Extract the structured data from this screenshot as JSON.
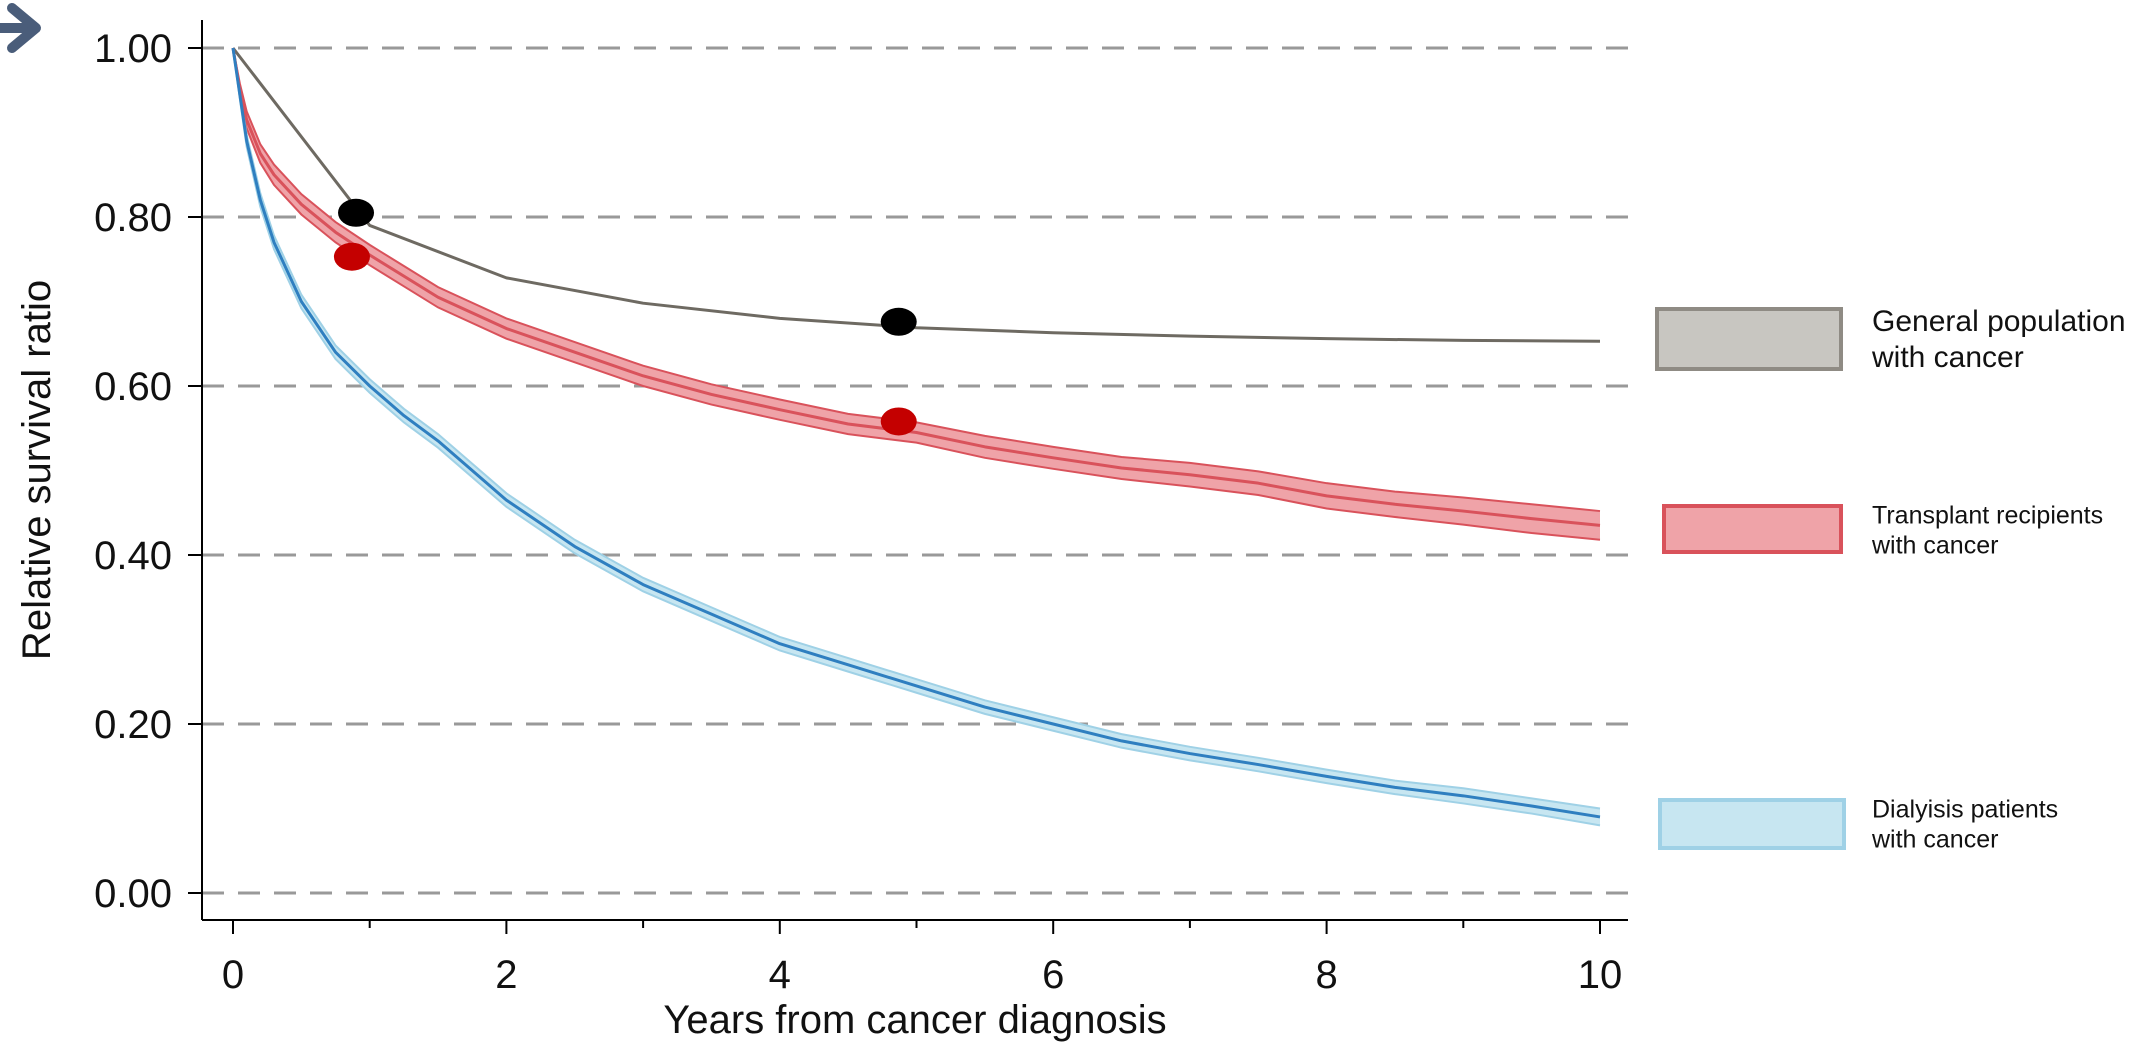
{
  "chart_data": {
    "type": "line",
    "xlabel": "Years from cancer diagnosis",
    "ylabel": "Relative survival ratio",
    "xlim": [
      0,
      10
    ],
    "ylim": [
      0,
      1
    ],
    "x_ticks": [
      "0",
      "2",
      "4",
      "6",
      "8",
      "10"
    ],
    "x_tick_values": [
      0,
      2,
      4,
      6,
      8,
      10
    ],
    "x_minor_ticks": [
      1,
      3,
      5,
      7,
      9
    ],
    "y_ticks": [
      "0.00",
      "0.20",
      "0.40",
      "0.60",
      "0.80",
      "1.00"
    ],
    "y_tick_values": [
      0,
      0.2,
      0.4,
      0.6,
      0.8,
      1.0
    ],
    "grid": "horizontal dashed",
    "legend_position": "right",
    "series": [
      {
        "name": "General population with cancer",
        "legend_line1": "General population",
        "legend_line2": "with cancer",
        "line_color": "#6e6a62",
        "band_color": "#c8c6c1",
        "band_edge_color": "#8f8b84",
        "x": [
          0,
          1,
          2,
          3,
          4,
          5,
          6,
          7,
          8,
          9,
          10
        ],
        "y": [
          1.0,
          0.79,
          0.728,
          0.698,
          0.68,
          0.669,
          0.663,
          0.659,
          0.656,
          0.654,
          0.653
        ],
        "lower": [
          1.0,
          0.79,
          0.728,
          0.698,
          0.68,
          0.669,
          0.663,
          0.659,
          0.656,
          0.654,
          0.653
        ],
        "upper": [
          1.0,
          0.79,
          0.728,
          0.698,
          0.68,
          0.669,
          0.663,
          0.659,
          0.656,
          0.654,
          0.653
        ],
        "markers": [
          {
            "x": 0.9,
            "y": 0.805,
            "color": "#000000"
          },
          {
            "x": 4.87,
            "y": 0.676,
            "color": "#000000"
          }
        ]
      },
      {
        "name": "Transplant recipients with cancer",
        "legend_line1": "Transplant recipients",
        "legend_line2": "with cancer",
        "line_color": "#d9525b",
        "band_color": "#efa3a8",
        "band_edge_color": "#d9525b",
        "x": [
          0,
          0.05,
          0.1,
          0.2,
          0.3,
          0.5,
          0.75,
          1,
          1.25,
          1.5,
          2,
          2.5,
          3,
          3.5,
          4,
          4.5,
          5,
          5.5,
          6,
          6.5,
          7,
          7.5,
          8,
          8.5,
          9,
          9.5,
          10
        ],
        "y": [
          1.0,
          0.95,
          0.915,
          0.875,
          0.85,
          0.815,
          0.782,
          0.755,
          0.73,
          0.705,
          0.668,
          0.64,
          0.612,
          0.59,
          0.572,
          0.555,
          0.545,
          0.528,
          0.515,
          0.503,
          0.495,
          0.485,
          0.47,
          0.46,
          0.452,
          0.443,
          0.435
        ],
        "lower": [
          1.0,
          0.942,
          0.905,
          0.864,
          0.838,
          0.803,
          0.77,
          0.743,
          0.718,
          0.693,
          0.656,
          0.628,
          0.6,
          0.578,
          0.56,
          0.543,
          0.533,
          0.515,
          0.502,
          0.49,
          0.481,
          0.471,
          0.455,
          0.445,
          0.436,
          0.426,
          0.418
        ],
        "upper": [
          1.0,
          0.958,
          0.925,
          0.886,
          0.862,
          0.827,
          0.794,
          0.767,
          0.742,
          0.717,
          0.68,
          0.652,
          0.624,
          0.602,
          0.584,
          0.567,
          0.557,
          0.541,
          0.528,
          0.516,
          0.509,
          0.499,
          0.485,
          0.475,
          0.468,
          0.46,
          0.452
        ],
        "markers": [
          {
            "x": 0.87,
            "y": 0.753,
            "color": "#c40000"
          },
          {
            "x": 4.87,
            "y": 0.558,
            "color": "#c40000"
          }
        ]
      },
      {
        "name": "Dialyisis patients with cancer",
        "legend_line1": "Dialyisis patients",
        "legend_line2": "with cancer",
        "line_color": "#2f7fc0",
        "band_color": "#c7e6f1",
        "band_edge_color": "#9fd1e6",
        "x": [
          0,
          0.05,
          0.1,
          0.2,
          0.3,
          0.5,
          0.75,
          1,
          1.25,
          1.5,
          2,
          2.5,
          3,
          3.5,
          4,
          4.5,
          5,
          5.5,
          6,
          6.5,
          7,
          7.5,
          8,
          8.5,
          9,
          9.5,
          10
        ],
        "y": [
          1.0,
          0.945,
          0.89,
          0.82,
          0.77,
          0.7,
          0.64,
          0.6,
          0.565,
          0.535,
          0.465,
          0.41,
          0.365,
          0.33,
          0.295,
          0.27,
          0.245,
          0.22,
          0.2,
          0.18,
          0.165,
          0.152,
          0.138,
          0.125,
          0.115,
          0.103,
          0.09
        ],
        "lower": [
          1.0,
          0.94,
          0.883,
          0.812,
          0.762,
          0.692,
          0.632,
          0.592,
          0.557,
          0.527,
          0.457,
          0.402,
          0.357,
          0.322,
          0.287,
          0.262,
          0.237,
          0.212,
          0.192,
          0.172,
          0.157,
          0.144,
          0.13,
          0.117,
          0.106,
          0.094,
          0.08
        ],
        "upper": [
          1.0,
          0.95,
          0.897,
          0.828,
          0.778,
          0.708,
          0.648,
          0.608,
          0.573,
          0.543,
          0.473,
          0.418,
          0.373,
          0.338,
          0.303,
          0.278,
          0.253,
          0.228,
          0.208,
          0.188,
          0.173,
          0.16,
          0.146,
          0.133,
          0.124,
          0.112,
          0.1
        ],
        "markers": []
      }
    ]
  }
}
